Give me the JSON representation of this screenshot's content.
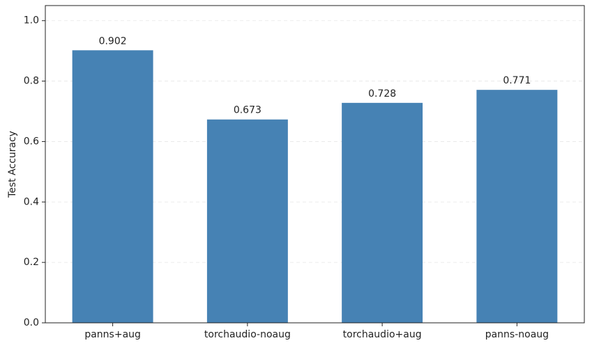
{
  "chart_data": {
    "type": "bar",
    "y_label": "Test Accuracy",
    "categories": [
      "panns+aug",
      "torchaudio-noaug",
      "torchaudio+aug",
      "panns-noaug"
    ],
    "values": [
      0.902,
      0.673,
      0.728,
      0.771
    ],
    "color": "#4682b4",
    "ylim": [
      0,
      1.05
    ],
    "yticks": [
      {
        "value": 0,
        "label": "0.0"
      },
      0.2,
      0.4,
      0.6,
      0.8,
      {
        "value": 1,
        "label": "1.0"
      }
    ],
    "grid": true
  }
}
